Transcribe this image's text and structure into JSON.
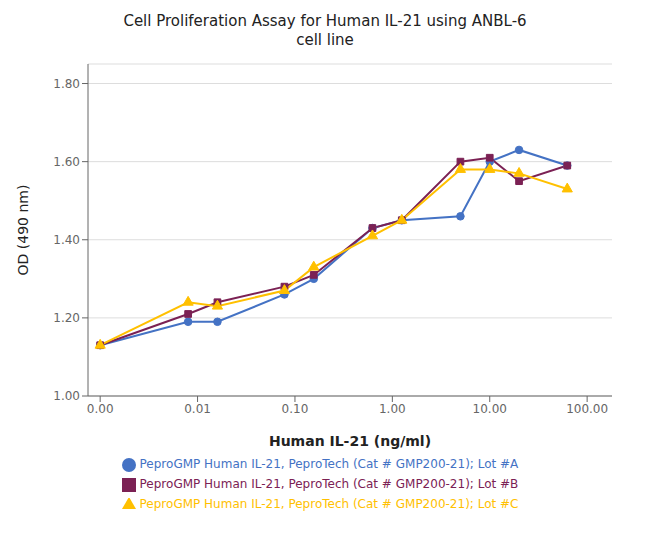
{
  "chart_data": {
    "type": "line",
    "title": "Cell Proliferation Assay for Human IL-21 using ANBL-6\ncell line",
    "x_label": "Human IL-21 (ng/ml)",
    "y_label": "OD (490 nm)",
    "x": [
      0.001,
      0.008,
      0.016,
      0.078,
      0.156,
      0.625,
      1.25,
      5.0,
      10.0,
      20.0,
      62.5
    ],
    "series": [
      {
        "name": "PeproGMP Human IL-21, PeproTech (Cat # GMP200-21); Lot #A",
        "color": "#4472C4",
        "marker": "circle",
        "values": [
          1.13,
          1.19,
          1.19,
          1.26,
          1.3,
          1.43,
          1.45,
          1.46,
          1.6,
          1.63,
          1.59
        ]
      },
      {
        "name": "PeproGMP Human IL-21, PeproTech (Cat # GMP200-21); Lot #B",
        "color": "#7B2154",
        "marker": "square",
        "values": [
          1.13,
          1.21,
          1.24,
          1.28,
          1.31,
          1.43,
          1.45,
          1.6,
          1.61,
          1.55,
          1.59
        ]
      },
      {
        "name": "PeproGMP Human IL-21, PeproTech (Cat # GMP200-21); Lot #C",
        "color": "#FFC000",
        "marker": "triangle",
        "values": [
          1.13,
          1.24,
          1.23,
          1.27,
          1.33,
          1.41,
          1.45,
          1.58,
          1.58,
          1.57,
          1.53
        ]
      }
    ],
    "xlim": [
      0.00075,
      180
    ],
    "xticks": [
      {
        "value": 0.001,
        "label": "0.00"
      },
      0.01,
      {
        "value": 0.1,
        "label": "0.10"
      },
      {
        "value": 1,
        "label": "1.00"
      },
      {
        "value": 10,
        "label": "10.00"
      },
      {
        "value": 100,
        "label": "100.00"
      }
    ],
    "ylim": [
      1.0,
      1.85
    ],
    "yticks": [
      {
        "value": 1.0,
        "label": "1.00"
      },
      {
        "value": 1.2,
        "label": "1.20"
      },
      {
        "value": 1.4,
        "label": "1.40"
      },
      {
        "value": 1.6,
        "label": "1.60"
      },
      {
        "value": 1.8,
        "label": "1.80"
      }
    ],
    "log": "x",
    "grid": "y",
    "legend": "bottom"
  }
}
